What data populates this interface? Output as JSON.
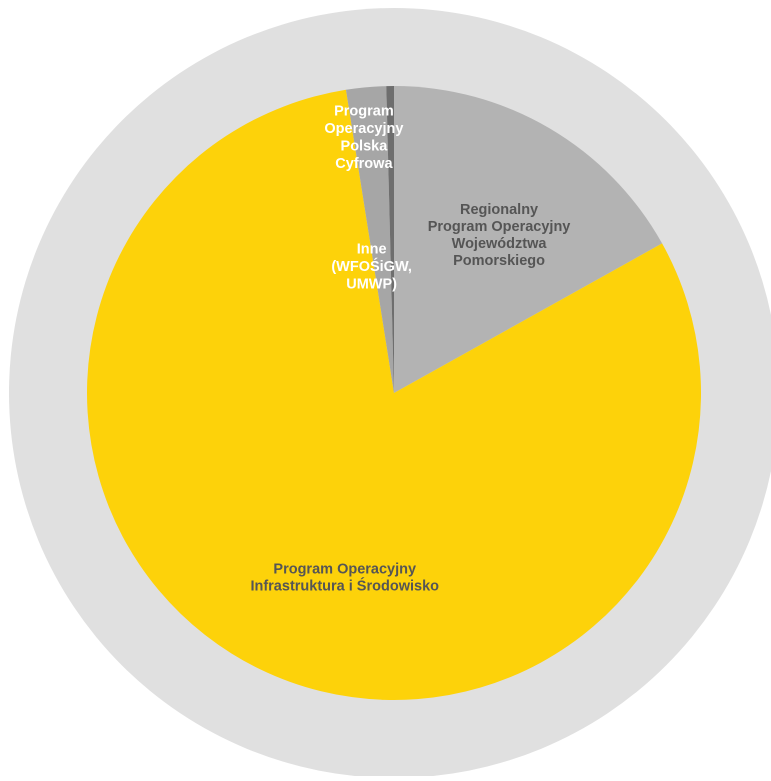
{
  "chart_data": {
    "type": "pie",
    "title": "",
    "slices": [
      {
        "label": "Regionalny Program Operacyjny Województwa Pomorskiego",
        "label_lines": [
          "Regionalny",
          "Program Operacyjny",
          "Województwa",
          "Pomorskiego"
        ],
        "value": 16.9,
        "color": "#b3b3b3",
        "label_color": "#555555"
      },
      {
        "label": "Program Operacyjny Infrastruktura i Środowisko",
        "label_lines": [
          "Program Operacyjny",
          "Infrastruktura i Środowisko"
        ],
        "value": 80.6,
        "color": "#fdd20a",
        "label_color": "#555555"
      },
      {
        "label": "Program Operacyjny Polska Cyfrowa",
        "label_lines": [
          "Program",
          "Operacyjny",
          "Polska",
          "Cyfrowa"
        ],
        "value": 2.1,
        "color": "#a6a6a6",
        "label_color": "#ffffff"
      },
      {
        "label": "Inne (WFOŚiGW, UMWP)",
        "label_lines": [
          "Inne",
          "(WFOŚiGW,",
          "UMWP)"
        ],
        "value": 0.4,
        "color": "#6e6e6e",
        "label_color": "#ffffff"
      }
    ],
    "colors": {
      "outer_ring": "#e0e0e0",
      "background": "#ffffff"
    },
    "legend": "none",
    "grid": false
  }
}
